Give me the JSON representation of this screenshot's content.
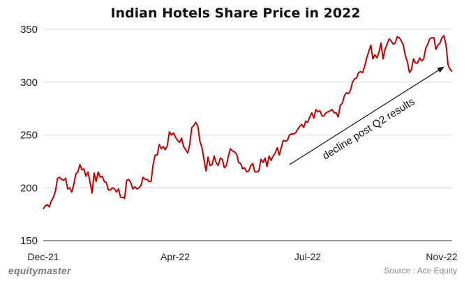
{
  "chart_data": {
    "type": "line",
    "title": "Indian Hotels Share Price in 2022",
    "xlabel": "",
    "ylabel": "",
    "x_tick_labels": [
      "Dec-21",
      "Apr-22",
      "Jul-22",
      "Nov-22"
    ],
    "y_ticks": [
      150,
      200,
      250,
      300,
      350
    ],
    "ylim": [
      150,
      350
    ],
    "grid": "horizontal",
    "series": [
      {
        "color": "#c00000",
        "values": [
          180,
          183,
          184,
          182,
          188,
          191,
          197,
          209,
          210,
          208,
          207,
          209,
          199,
          200,
          196,
          203,
          213,
          215,
          222,
          217,
          218,
          211,
          215,
          205,
          195,
          214,
          206,
          215,
          210,
          211,
          206,
          205,
          198,
          198,
          200,
          199,
          196,
          199,
          191,
          191,
          190,
          207,
          208,
          205,
          199,
          201,
          199,
          200,
          202,
          210,
          208,
          208,
          206,
          206,
          222,
          231,
          231,
          241,
          237,
          239,
          236,
          240,
          253,
          250,
          252,
          248,
          245,
          243,
          247,
          239,
          236,
          233,
          241,
          257,
          259,
          262,
          258,
          244,
          238,
          227,
          216,
          229,
          221,
          222,
          230,
          224,
          221,
          228,
          227,
          219,
          221,
          230,
          237,
          235,
          234,
          232,
          224,
          223,
          218,
          219,
          215,
          216,
          221,
          223,
          215,
          215,
          216,
          227,
          224,
          228,
          220,
          230,
          226,
          230,
          233,
          238,
          231,
          238,
          245,
          244,
          245,
          250,
          251,
          251,
          252,
          255,
          258,
          260,
          257,
          263,
          262,
          267,
          271,
          266,
          274,
          272,
          273,
          268,
          268,
          271,
          272,
          273,
          274,
          271,
          271,
          267,
          278,
          280,
          287,
          290,
          289,
          292,
          300,
          303,
          304,
          309,
          310,
          309,
          315,
          323,
          329,
          335,
          322,
          326,
          323,
          328,
          337,
          322,
          331,
          336,
          341,
          339,
          336,
          337,
          343,
          342,
          339,
          335,
          325,
          319,
          309,
          312,
          322,
          318,
          318,
          323,
          320,
          322,
          332,
          336,
          341,
          342,
          342,
          331,
          335,
          337,
          342,
          344,
          335,
          316,
          312,
          310
        ]
      }
    ],
    "annotations": [
      {
        "text": "decline post Q2 results"
      }
    ]
  },
  "footer": {
    "brand": "equitymaster",
    "source": "Source : Ace Equity"
  }
}
